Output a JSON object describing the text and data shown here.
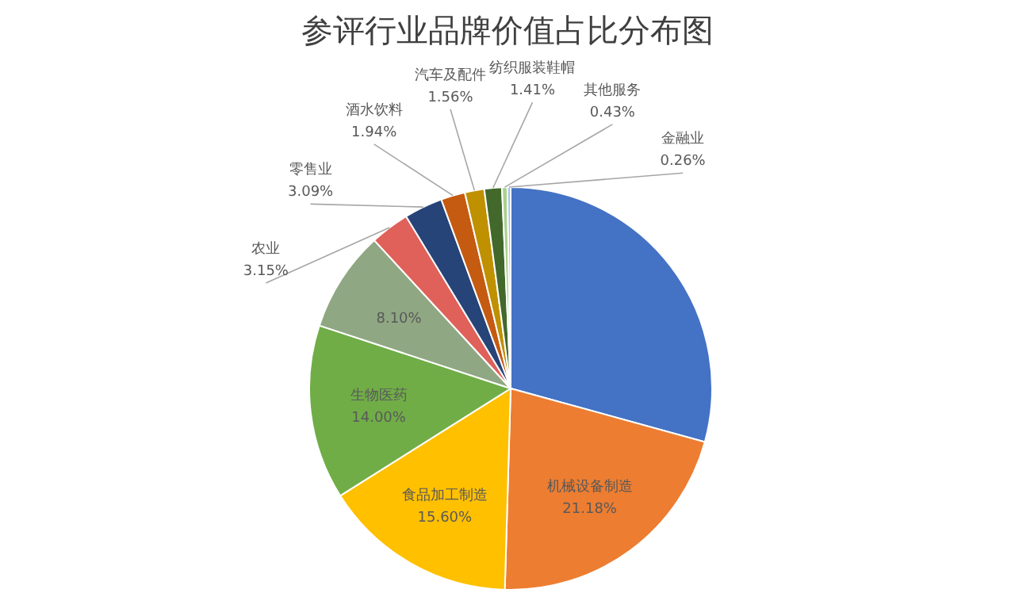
{
  "chart_data": {
    "type": "pie",
    "title": "参评行业品牌价值占比分布图",
    "categories": [
      null,
      "机械设备制造",
      "食品加工制造",
      "生物医药",
      null,
      "农业",
      "零售业",
      "酒水饮料",
      "汽车及配件",
      "纺织服装鞋帽",
      "其他服务",
      "金融业"
    ],
    "values": [
      29.28,
      21.18,
      15.6,
      14.0,
      8.1,
      3.15,
      3.09,
      1.94,
      1.56,
      1.41,
      0.43,
      0.26
    ],
    "value_labels": [
      null,
      "21.18%",
      "15.60%",
      "14.00%",
      "8.10%",
      "3.15%",
      "3.09%",
      "1.94%",
      "1.56%",
      "1.41%",
      "0.43%",
      "0.26%"
    ],
    "colors": [
      "#4472c4",
      "#ed7d31",
      "#ffc000",
      "#70ad47",
      "#8fa883",
      "#e0605a",
      "#264478",
      "#c55a11",
      "#bf9000",
      "#43682b",
      "#a9d18e",
      "#9dc3e6"
    ]
  }
}
